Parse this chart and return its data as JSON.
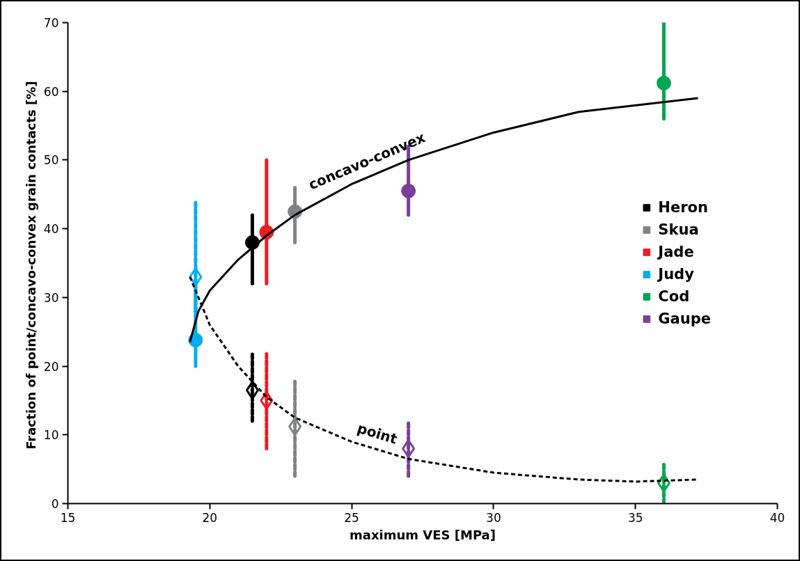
{
  "chart_data": {
    "type": "scatter",
    "xlabel": "maximum VES [MPa]",
    "ylabel": "Fraction of point/concavo-convex grain contacts  [%]",
    "xlim": [
      15,
      40
    ],
    "xticks": [
      15,
      20,
      25,
      30,
      35,
      40
    ],
    "ylim": [
      0,
      70
    ],
    "yticks": [
      0,
      10,
      20,
      30,
      40,
      50,
      60,
      70
    ],
    "grid": false,
    "legend": "right",
    "series": [
      {
        "name": "Heron",
        "color": "#000000",
        "marker": "circle",
        "line_style": "solid",
        "x": [
          21.5
        ],
        "values": [
          38.0
        ],
        "errors": [
          [
            32,
            42
          ]
        ]
      },
      {
        "name": "Skua",
        "color": "#808285",
        "marker": "circle",
        "line_style": "solid",
        "x": [
          23
        ],
        "values": [
          42.5
        ],
        "errors": [
          [
            38,
            46
          ]
        ]
      },
      {
        "name": "Jade",
        "color": "#ed1c24",
        "marker": "circle",
        "line_style": "solid",
        "x": [
          22
        ],
        "values": [
          39.5
        ],
        "errors": [
          [
            32,
            50
          ]
        ]
      },
      {
        "name": "Judy",
        "color": "#00aeef",
        "marker": "circle",
        "line_style": "solid",
        "x": [
          19.5
        ],
        "values": [
          23.8
        ],
        "errors": [
          [
            20,
            32
          ]
        ]
      },
      {
        "name": "Cod",
        "color": "#00a651",
        "marker": "circle",
        "line_style": "solid",
        "x": [
          36
        ],
        "values": [
          61.2
        ],
        "errors": [
          [
            56,
            70
          ]
        ]
      },
      {
        "name": "Gaupe",
        "color": "#7a3f98",
        "marker": "circle",
        "line_style": "solid",
        "x": [
          27
        ],
        "values": [
          45.5
        ],
        "errors": [
          [
            42,
            52
          ]
        ]
      },
      {
        "color": "#000000",
        "marker": "diamond",
        "line_style": "dashed",
        "x": [
          21.5
        ],
        "values": [
          16.5
        ],
        "errors": [
          [
            12,
            22
          ]
        ]
      },
      {
        "color": "#808285",
        "marker": "diamond",
        "line_style": "dashed",
        "x": [
          23
        ],
        "values": [
          11.2
        ],
        "errors": [
          [
            4,
            18
          ]
        ]
      },
      {
        "color": "#ed1c24",
        "marker": "diamond",
        "line_style": "dashed",
        "x": [
          22
        ],
        "values": [
          15
        ],
        "errors": [
          [
            8,
            22
          ]
        ]
      },
      {
        "color": "#00aeef",
        "marker": "diamond",
        "line_style": "dashed",
        "x": [
          19.5
        ],
        "values": [
          33
        ],
        "errors": [
          [
            28,
            44
          ]
        ]
      },
      {
        "color": "#00a651",
        "marker": "diamond",
        "line_style": "dashed",
        "x": [
          36
        ],
        "values": [
          3
        ],
        "errors": [
          [
            0,
            6
          ]
        ]
      },
      {
        "color": "#7a3f98",
        "marker": "diamond",
        "line_style": "dashed",
        "x": [
          27
        ],
        "values": [
          8
        ],
        "errors": [
          [
            4,
            12
          ]
        ]
      },
      {
        "type": "line",
        "color": "#000000",
        "marker": "none",
        "line_style": "solid",
        "x": [
          19.3,
          19.6,
          20,
          21,
          22,
          23,
          25,
          27,
          30,
          33,
          37.2
        ],
        "values": [
          23.5,
          28,
          31,
          35.5,
          39,
          42,
          46.5,
          50,
          54,
          57,
          59
        ]
      },
      {
        "type": "line",
        "color": "#000000",
        "marker": "none",
        "line_style": "dashed",
        "x": [
          19.3,
          20,
          21,
          22,
          23,
          25,
          27,
          30,
          33,
          35,
          37.2
        ],
        "values": [
          33,
          26,
          20,
          15.5,
          12.5,
          9,
          6.5,
          4.5,
          3.5,
          3.2,
          3.5
        ]
      }
    ],
    "annotations": [
      "concavo-convex",
      "point"
    ]
  }
}
